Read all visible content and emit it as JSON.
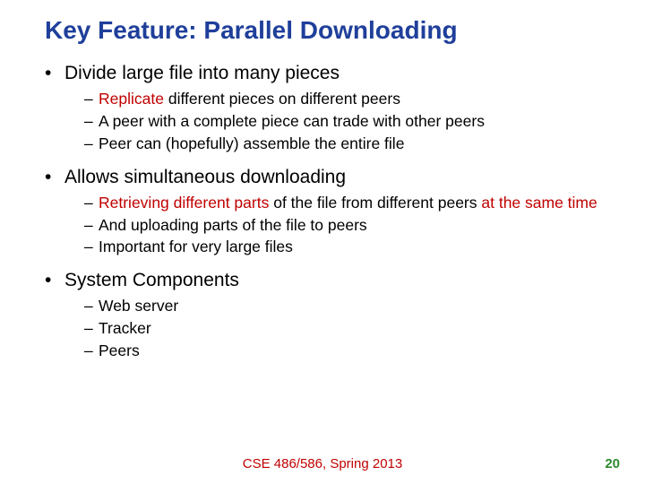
{
  "colors": {
    "title": "#1f3f9a",
    "text": "#000000",
    "emphasis": "#c00000",
    "footer": "#c00000",
    "pagenum": "#2e8b2e",
    "background": "#ffffff"
  },
  "title": "Key Feature: Parallel Downloading",
  "sections": [
    {
      "heading": "Divide large file into many pieces",
      "items": [
        {
          "runs": [
            {
              "t": "Replicate",
              "em": true
            },
            {
              "t": " different pieces on different peers",
              "em": false
            }
          ]
        },
        {
          "runs": [
            {
              "t": "A peer with a complete piece can trade with other peers",
              "em": false
            }
          ]
        },
        {
          "runs": [
            {
              "t": "Peer can (hopefully) assemble the entire file",
              "em": false
            }
          ]
        }
      ]
    },
    {
      "heading": "Allows simultaneous downloading",
      "items": [
        {
          "runs": [
            {
              "t": "Retrieving different parts",
              "em": true
            },
            {
              "t": " of the file from different peers ",
              "em": false
            },
            {
              "t": "at the same time",
              "em": true
            }
          ]
        },
        {
          "runs": [
            {
              "t": "And uploading parts of the file to peers",
              "em": false
            }
          ]
        },
        {
          "runs": [
            {
              "t": "Important for very large files",
              "em": false
            }
          ]
        }
      ]
    },
    {
      "heading": "System Components",
      "items": [
        {
          "runs": [
            {
              "t": "Web server",
              "em": false
            }
          ]
        },
        {
          "runs": [
            {
              "t": "Tracker",
              "em": false
            }
          ]
        },
        {
          "runs": [
            {
              "t": "Peers",
              "em": false
            }
          ]
        }
      ]
    }
  ],
  "footer": "CSE 486/586, Spring 2013",
  "pageNumber": "20"
}
